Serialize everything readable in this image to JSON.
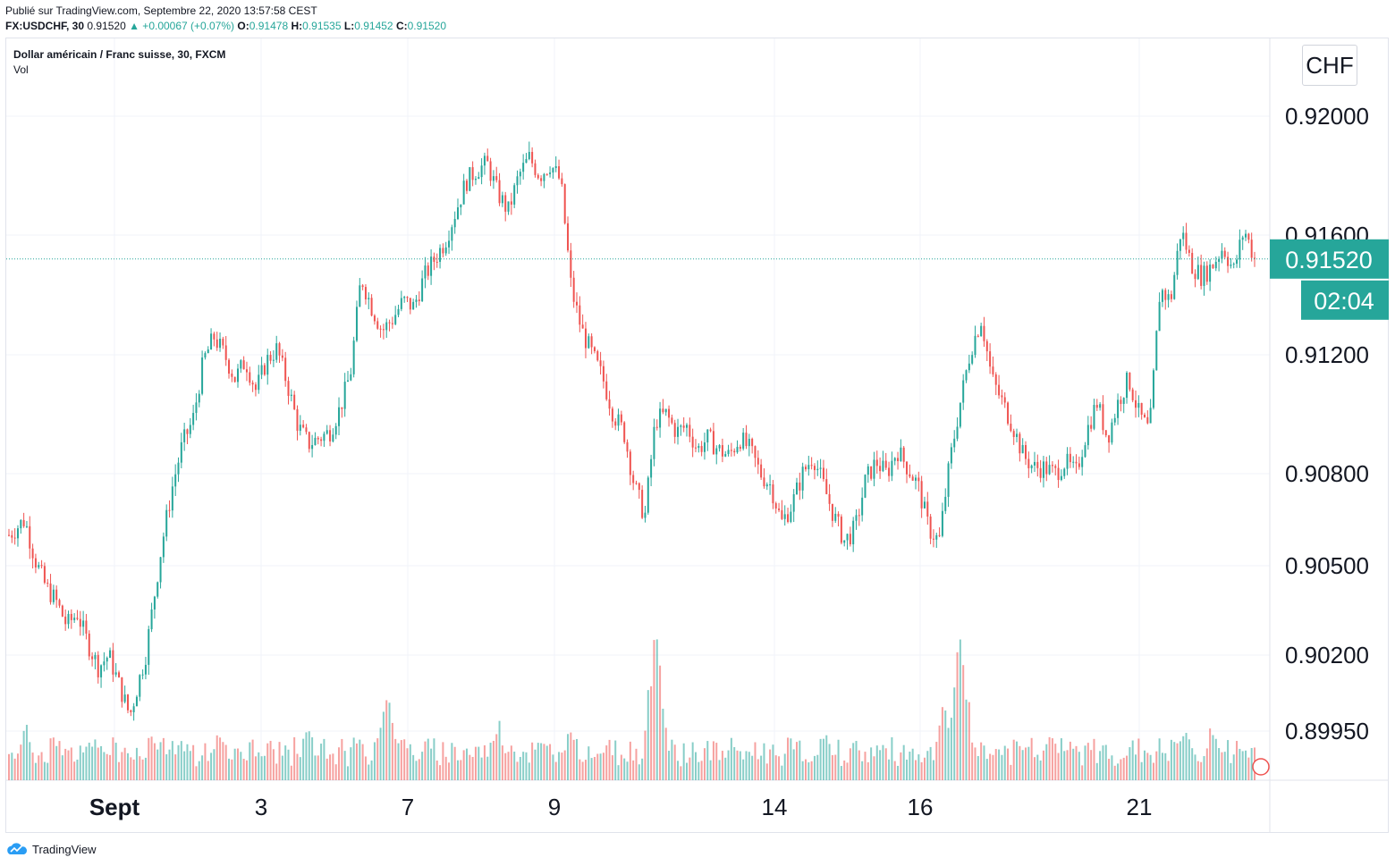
{
  "header": {
    "published": "Publié sur TradingView.com, Septembre 22, 2020 13:57:58 CEST",
    "symbol": "FX:USDCHF, 30",
    "last": "0.91520",
    "change": "▲ +0.00067 (+0.07%)",
    "o_label": "O:",
    "o_value": "0.91478",
    "h_label": "H:",
    "h_value": "0.91535",
    "l_label": "L:",
    "l_value": "0.91452",
    "c_label": "C:",
    "c_value": "0.91520"
  },
  "legend": {
    "title": "Dollar américain / Franc suisse, 30, FXCM",
    "volume": "Vol"
  },
  "currency_button": "CHF",
  "footer": {
    "brand": "TradingView"
  },
  "colors": {
    "up": "#26a69a",
    "down": "#ef5350",
    "price_tag": "#26a69a",
    "grid": "#f0f3fa"
  },
  "chart_data": {
    "type": "candlestick",
    "title": "Dollar américain / Franc suisse, 30, FXCM",
    "y_ticks": [
      "0.92000",
      "0.91600",
      "0.91200",
      "0.90800",
      "0.90500",
      "0.90200",
      "0.89950"
    ],
    "x_ticks": [
      "Sept",
      "3",
      "7",
      "9",
      "14",
      "16",
      "21"
    ],
    "last_price": "0.91520",
    "countdown": "02:04",
    "series": [
      {
        "kind": "price",
        "path": [
          [
            0,
            0.906
          ],
          [
            3,
            0.9065
          ],
          [
            5,
            0.9052
          ],
          [
            7,
            0.9043
          ],
          [
            9,
            0.9038
          ],
          [
            11,
            0.903
          ],
          [
            13,
            0.9034
          ],
          [
            15,
            0.9024
          ],
          [
            17,
            0.9016
          ],
          [
            19,
            0.902
          ],
          [
            21,
            0.901
          ],
          [
            23,
            0.9
          ],
          [
            26,
            0.902
          ],
          [
            29,
            0.9056
          ],
          [
            31,
            0.9075
          ],
          [
            33,
            0.909
          ],
          [
            35,
            0.9098
          ],
          [
            37,
            0.9118
          ],
          [
            39,
            0.9126
          ],
          [
            41,
            0.912
          ],
          [
            43,
            0.9112
          ],
          [
            45,
            0.9118
          ],
          [
            47,
            0.9108
          ],
          [
            49,
            0.9118
          ],
          [
            51,
            0.9122
          ],
          [
            53,
            0.911
          ],
          [
            55,
            0.9096
          ],
          [
            57,
            0.909
          ],
          [
            59,
            0.9092
          ],
          [
            61,
            0.9094
          ],
          [
            63,
            0.9102
          ],
          [
            65,
            0.9114
          ],
          [
            67,
            0.9146
          ],
          [
            69,
            0.9136
          ],
          [
            71,
            0.9128
          ],
          [
            73,
            0.9132
          ],
          [
            75,
            0.9138
          ],
          [
            77,
            0.9136
          ],
          [
            79,
            0.9146
          ],
          [
            81,
            0.9152
          ],
          [
            83,
            0.9158
          ],
          [
            85,
            0.9168
          ],
          [
            87,
            0.9178
          ],
          [
            89,
            0.9182
          ],
          [
            91,
            0.9184
          ],
          [
            93,
            0.9174
          ],
          [
            95,
            0.9168
          ],
          [
            97,
            0.918
          ],
          [
            99,
            0.9186
          ],
          [
            101,
            0.918
          ],
          [
            103,
            0.9184
          ],
          [
            105,
            0.9178
          ],
          [
            107,
            0.9142
          ],
          [
            109,
            0.9128
          ],
          [
            111,
            0.912
          ],
          [
            113,
            0.9112
          ],
          [
            115,
            0.91
          ],
          [
            117,
            0.9094
          ],
          [
            119,
            0.9076
          ],
          [
            121,
            0.9066
          ],
          [
            123,
            0.9098
          ],
          [
            125,
            0.91
          ],
          [
            127,
            0.9094
          ],
          [
            129,
            0.9096
          ],
          [
            131,
            0.9088
          ],
          [
            133,
            0.9092
          ],
          [
            135,
            0.9088
          ],
          [
            137,
            0.9086
          ],
          [
            139,
            0.9092
          ],
          [
            141,
            0.9088
          ],
          [
            143,
            0.908
          ],
          [
            145,
            0.9076
          ],
          [
            147,
            0.9064
          ],
          [
            149,
            0.907
          ],
          [
            151,
            0.908
          ],
          [
            153,
            0.9086
          ],
          [
            155,
            0.9076
          ],
          [
            157,
            0.9066
          ],
          [
            159,
            0.9058
          ],
          [
            161,
            0.9062
          ],
          [
            163,
            0.9078
          ],
          [
            165,
            0.9084
          ],
          [
            167,
            0.908
          ],
          [
            169,
            0.9088
          ],
          [
            171,
            0.9082
          ],
          [
            173,
            0.9076
          ],
          [
            175,
            0.9062
          ],
          [
            177,
            0.9058
          ],
          [
            179,
            0.9084
          ],
          [
            181,
            0.9104
          ],
          [
            183,
            0.9122
          ],
          [
            185,
            0.9132
          ],
          [
            187,
            0.9112
          ],
          [
            189,
            0.9104
          ],
          [
            191,
            0.9096
          ],
          [
            193,
            0.9086
          ],
          [
            195,
            0.9082
          ],
          [
            197,
            0.9082
          ],
          [
            199,
            0.908
          ],
          [
            201,
            0.9084
          ],
          [
            203,
            0.908
          ],
          [
            205,
            0.9094
          ],
          [
            207,
            0.9104
          ],
          [
            209,
            0.9092
          ],
          [
            211,
            0.9104
          ],
          [
            213,
            0.9112
          ],
          [
            215,
            0.91
          ],
          [
            217,
            0.9094
          ],
          [
            219,
            0.9142
          ],
          [
            221,
            0.9138
          ],
          [
            223,
            0.9162
          ],
          [
            225,
            0.915
          ],
          [
            227,
            0.9146
          ],
          [
            229,
            0.915
          ],
          [
            231,
            0.9156
          ],
          [
            233,
            0.9148
          ],
          [
            235,
            0.9162
          ],
          [
            237,
            0.9152
          ]
        ]
      },
      {
        "kind": "volume",
        "peaks": [
          [
            0,
            0.3
          ],
          [
            3,
            0.55
          ],
          [
            15,
            0.45
          ],
          [
            27,
            0.4
          ],
          [
            40,
            0.5
          ],
          [
            57,
            0.5
          ],
          [
            72,
            1.0
          ],
          [
            93,
            0.6
          ],
          [
            107,
            0.55
          ],
          [
            123,
            1.5
          ],
          [
            155,
            0.5
          ],
          [
            178,
            0.75
          ],
          [
            181,
            1.55
          ],
          [
            198,
            0.5
          ],
          [
            224,
            0.55
          ],
          [
            229,
            0.55
          ]
        ]
      }
    ]
  }
}
